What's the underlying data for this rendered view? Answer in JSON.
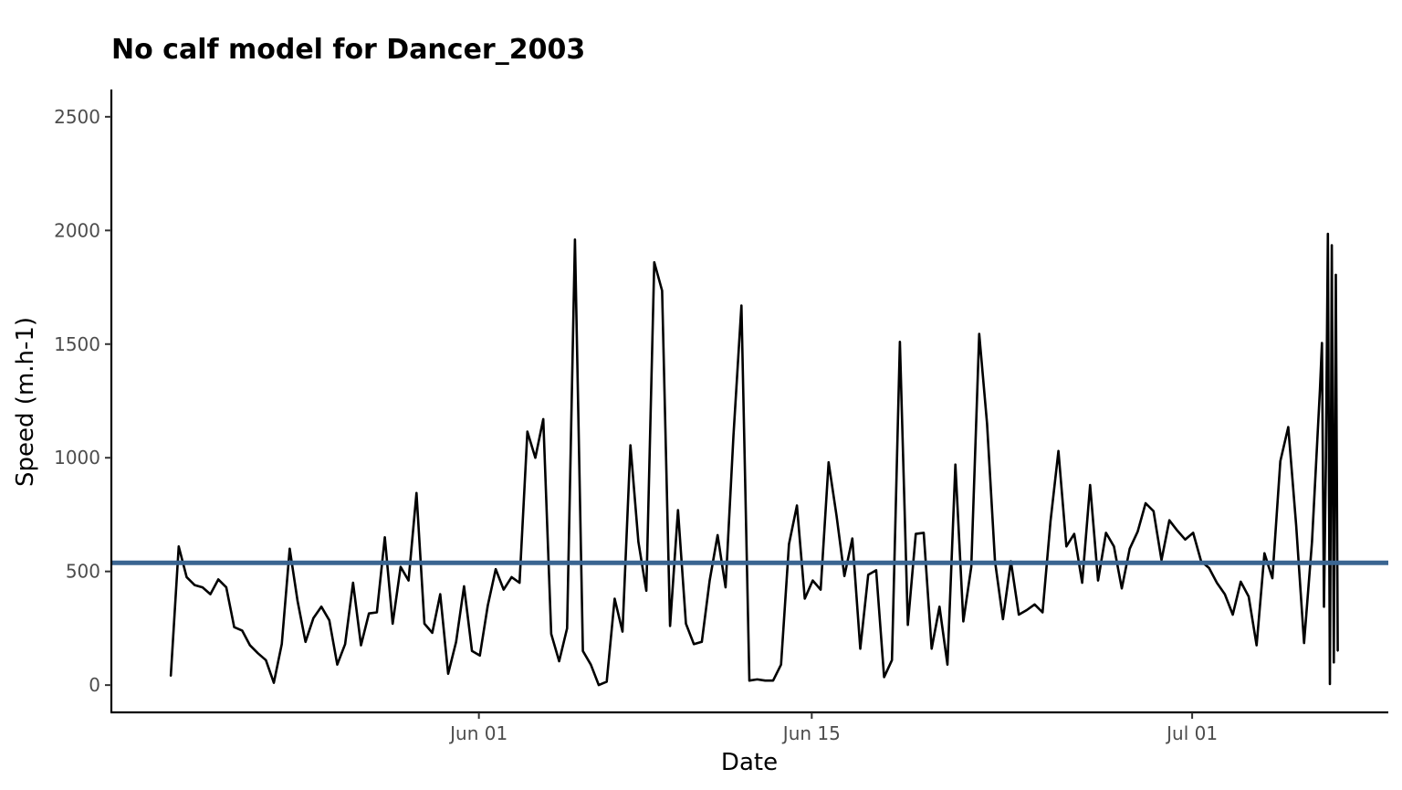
{
  "chart_data": {
    "type": "line",
    "title": "No calf model for Dancer_2003",
    "xlabel": "Date",
    "ylabel": "Speed (m.h-1)",
    "ylim": [
      -120,
      2620
    ],
    "xlim": [
      "2003-05-16T13:00",
      "2003-07-09T06:00"
    ],
    "grid": false,
    "y_ticks": [
      0,
      500,
      1000,
      1500,
      2000,
      2500
    ],
    "x_ticks": [
      {
        "date": "2003-06-01",
        "label": "Jun 01"
      },
      {
        "date": "2003-06-15",
        "label": "Jun 15"
      },
      {
        "date": "2003-07-01",
        "label": "Jul 01"
      }
    ],
    "series": [
      {
        "color": "#000000",
        "points": [
          [
            "2003-05-19T01:00",
            40
          ],
          [
            "2003-05-19T09:00",
            610
          ],
          [
            "2003-05-19T17:00",
            475
          ],
          [
            "2003-05-20T01:00",
            440
          ],
          [
            "2003-05-20T09:00",
            430
          ],
          [
            "2003-05-20T17:00",
            400
          ],
          [
            "2003-05-21T01:00",
            465
          ],
          [
            "2003-05-21T09:00",
            430
          ],
          [
            "2003-05-21T17:00",
            255
          ],
          [
            "2003-05-22T01:00",
            240
          ],
          [
            "2003-05-22T09:00",
            175
          ],
          [
            "2003-05-22T17:00",
            140
          ],
          [
            "2003-05-23T01:00",
            110
          ],
          [
            "2003-05-23T09:00",
            10
          ],
          [
            "2003-05-23T17:00",
            180
          ],
          [
            "2003-05-24T01:00",
            600
          ],
          [
            "2003-05-24T09:00",
            370
          ],
          [
            "2003-05-24T17:00",
            190
          ],
          [
            "2003-05-25T01:00",
            295
          ],
          [
            "2003-05-25T09:00",
            345
          ],
          [
            "2003-05-25T17:00",
            285
          ],
          [
            "2003-05-26T01:00",
            90
          ],
          [
            "2003-05-26T09:00",
            180
          ],
          [
            "2003-05-26T17:00",
            450
          ],
          [
            "2003-05-27T01:00",
            175
          ],
          [
            "2003-05-27T09:00",
            315
          ],
          [
            "2003-05-27T17:00",
            320
          ],
          [
            "2003-05-28T01:00",
            650
          ],
          [
            "2003-05-28T09:00",
            270
          ],
          [
            "2003-05-28T17:00",
            520
          ],
          [
            "2003-05-29T01:00",
            460
          ],
          [
            "2003-05-29T09:00",
            845
          ],
          [
            "2003-05-29T17:00",
            270
          ],
          [
            "2003-05-30T01:00",
            230
          ],
          [
            "2003-05-30T09:00",
            400
          ],
          [
            "2003-05-30T17:00",
            50
          ],
          [
            "2003-05-31T01:00",
            190
          ],
          [
            "2003-05-31T09:00",
            435
          ],
          [
            "2003-05-31T17:00",
            150
          ],
          [
            "2003-06-01T01:00",
            130
          ],
          [
            "2003-06-01T09:00",
            350
          ],
          [
            "2003-06-01T17:00",
            510
          ],
          [
            "2003-06-02T01:00",
            420
          ],
          [
            "2003-06-02T09:00",
            475
          ],
          [
            "2003-06-02T17:00",
            450
          ],
          [
            "2003-06-03T01:00",
            1115
          ],
          [
            "2003-06-03T09:00",
            1000
          ],
          [
            "2003-06-03T17:00",
            1170
          ],
          [
            "2003-06-04T01:00",
            225
          ],
          [
            "2003-06-04T09:00",
            105
          ],
          [
            "2003-06-04T17:00",
            250
          ],
          [
            "2003-06-05T01:00",
            1960
          ],
          [
            "2003-06-05T09:00",
            150
          ],
          [
            "2003-06-05T17:00",
            90
          ],
          [
            "2003-06-06T01:00",
            0
          ],
          [
            "2003-06-06T09:00",
            15
          ],
          [
            "2003-06-06T17:00",
            380
          ],
          [
            "2003-06-07T01:00",
            235
          ],
          [
            "2003-06-07T09:00",
            1055
          ],
          [
            "2003-06-07T17:00",
            630
          ],
          [
            "2003-06-08T01:00",
            415
          ],
          [
            "2003-06-08T09:00",
            1860
          ],
          [
            "2003-06-08T17:00",
            1735
          ],
          [
            "2003-06-09T01:00",
            260
          ],
          [
            "2003-06-09T09:00",
            770
          ],
          [
            "2003-06-09T17:00",
            270
          ],
          [
            "2003-06-10T01:00",
            180
          ],
          [
            "2003-06-10T09:00",
            190
          ],
          [
            "2003-06-10T17:00",
            460
          ],
          [
            "2003-06-11T01:00",
            660
          ],
          [
            "2003-06-11T09:00",
            430
          ],
          [
            "2003-06-11T17:00",
            1100
          ],
          [
            "2003-06-12T01:00",
            1670
          ],
          [
            "2003-06-12T09:00",
            20
          ],
          [
            "2003-06-12T17:00",
            25
          ],
          [
            "2003-06-13T01:00",
            20
          ],
          [
            "2003-06-13T09:00",
            20
          ],
          [
            "2003-06-13T17:00",
            90
          ],
          [
            "2003-06-14T01:00",
            620
          ],
          [
            "2003-06-14T09:00",
            790
          ],
          [
            "2003-06-14T17:00",
            380
          ],
          [
            "2003-06-15T01:00",
            460
          ],
          [
            "2003-06-15T09:00",
            420
          ],
          [
            "2003-06-15T17:00",
            980
          ],
          [
            "2003-06-16T01:00",
            745
          ],
          [
            "2003-06-16T09:00",
            480
          ],
          [
            "2003-06-16T17:00",
            645
          ],
          [
            "2003-06-17T01:00",
            160
          ],
          [
            "2003-06-17T09:00",
            485
          ],
          [
            "2003-06-17T17:00",
            505
          ],
          [
            "2003-06-18T01:00",
            35
          ],
          [
            "2003-06-18T09:00",
            110
          ],
          [
            "2003-06-18T17:00",
            1510
          ],
          [
            "2003-06-19T01:00",
            265
          ],
          [
            "2003-06-19T09:00",
            665
          ],
          [
            "2003-06-19T17:00",
            670
          ],
          [
            "2003-06-20T01:00",
            160
          ],
          [
            "2003-06-20T09:00",
            345
          ],
          [
            "2003-06-20T17:00",
            90
          ],
          [
            "2003-06-21T01:00",
            970
          ],
          [
            "2003-06-21T09:00",
            280
          ],
          [
            "2003-06-21T17:00",
            520
          ],
          [
            "2003-06-22T01:00",
            1545
          ],
          [
            "2003-06-22T09:00",
            1150
          ],
          [
            "2003-06-22T17:00",
            545
          ],
          [
            "2003-06-23T01:00",
            290
          ],
          [
            "2003-06-23T09:00",
            545
          ],
          [
            "2003-06-23T17:00",
            310
          ],
          [
            "2003-06-24T01:00",
            330
          ],
          [
            "2003-06-24T09:00",
            355
          ],
          [
            "2003-06-24T17:00",
            320
          ],
          [
            "2003-06-25T01:00",
            720
          ],
          [
            "2003-06-25T09:00",
            1030
          ],
          [
            "2003-06-25T17:00",
            610
          ],
          [
            "2003-06-26T01:00",
            665
          ],
          [
            "2003-06-26T09:00",
            450
          ],
          [
            "2003-06-26T17:00",
            880
          ],
          [
            "2003-06-27T01:00",
            460
          ],
          [
            "2003-06-27T09:00",
            670
          ],
          [
            "2003-06-27T17:00",
            610
          ],
          [
            "2003-06-28T01:00",
            425
          ],
          [
            "2003-06-28T09:00",
            600
          ],
          [
            "2003-06-28T17:00",
            675
          ],
          [
            "2003-06-29T01:00",
            800
          ],
          [
            "2003-06-29T09:00",
            765
          ],
          [
            "2003-06-29T17:00",
            550
          ],
          [
            "2003-06-30T01:00",
            725
          ],
          [
            "2003-06-30T09:00",
            680
          ],
          [
            "2003-06-30T17:00",
            640
          ],
          [
            "2003-07-01T01:00",
            670
          ],
          [
            "2003-07-01T09:00",
            545
          ],
          [
            "2003-07-01T17:00",
            515
          ],
          [
            "2003-07-02T01:00",
            450
          ],
          [
            "2003-07-02T09:00",
            400
          ],
          [
            "2003-07-02T17:00",
            310
          ],
          [
            "2003-07-03T01:00",
            455
          ],
          [
            "2003-07-03T09:00",
            390
          ],
          [
            "2003-07-03T17:00",
            175
          ],
          [
            "2003-07-04T01:00",
            580
          ],
          [
            "2003-07-04T09:00",
            470
          ],
          [
            "2003-07-04T17:00",
            985
          ],
          [
            "2003-07-05T01:00",
            1135
          ],
          [
            "2003-07-05T09:00",
            700
          ],
          [
            "2003-07-05T17:00",
            185
          ],
          [
            "2003-07-06T01:00",
            630
          ],
          [
            "2003-07-06T09:00",
            1300
          ],
          [
            "2003-07-06T11:00",
            1505
          ],
          [
            "2003-07-06T13:00",
            345
          ],
          [
            "2003-07-06T15:00",
            980
          ],
          [
            "2003-07-06T17:00",
            1985
          ],
          [
            "2003-07-06T19:00",
            5
          ],
          [
            "2003-07-06T21:00",
            1935
          ],
          [
            "2003-07-06T23:00",
            100
          ],
          [
            "2003-07-07T01:00",
            1805
          ],
          [
            "2003-07-07T03:00",
            150
          ]
        ]
      },
      {
        "color": "#3a6591",
        "type": "hline",
        "value": 538
      }
    ]
  }
}
